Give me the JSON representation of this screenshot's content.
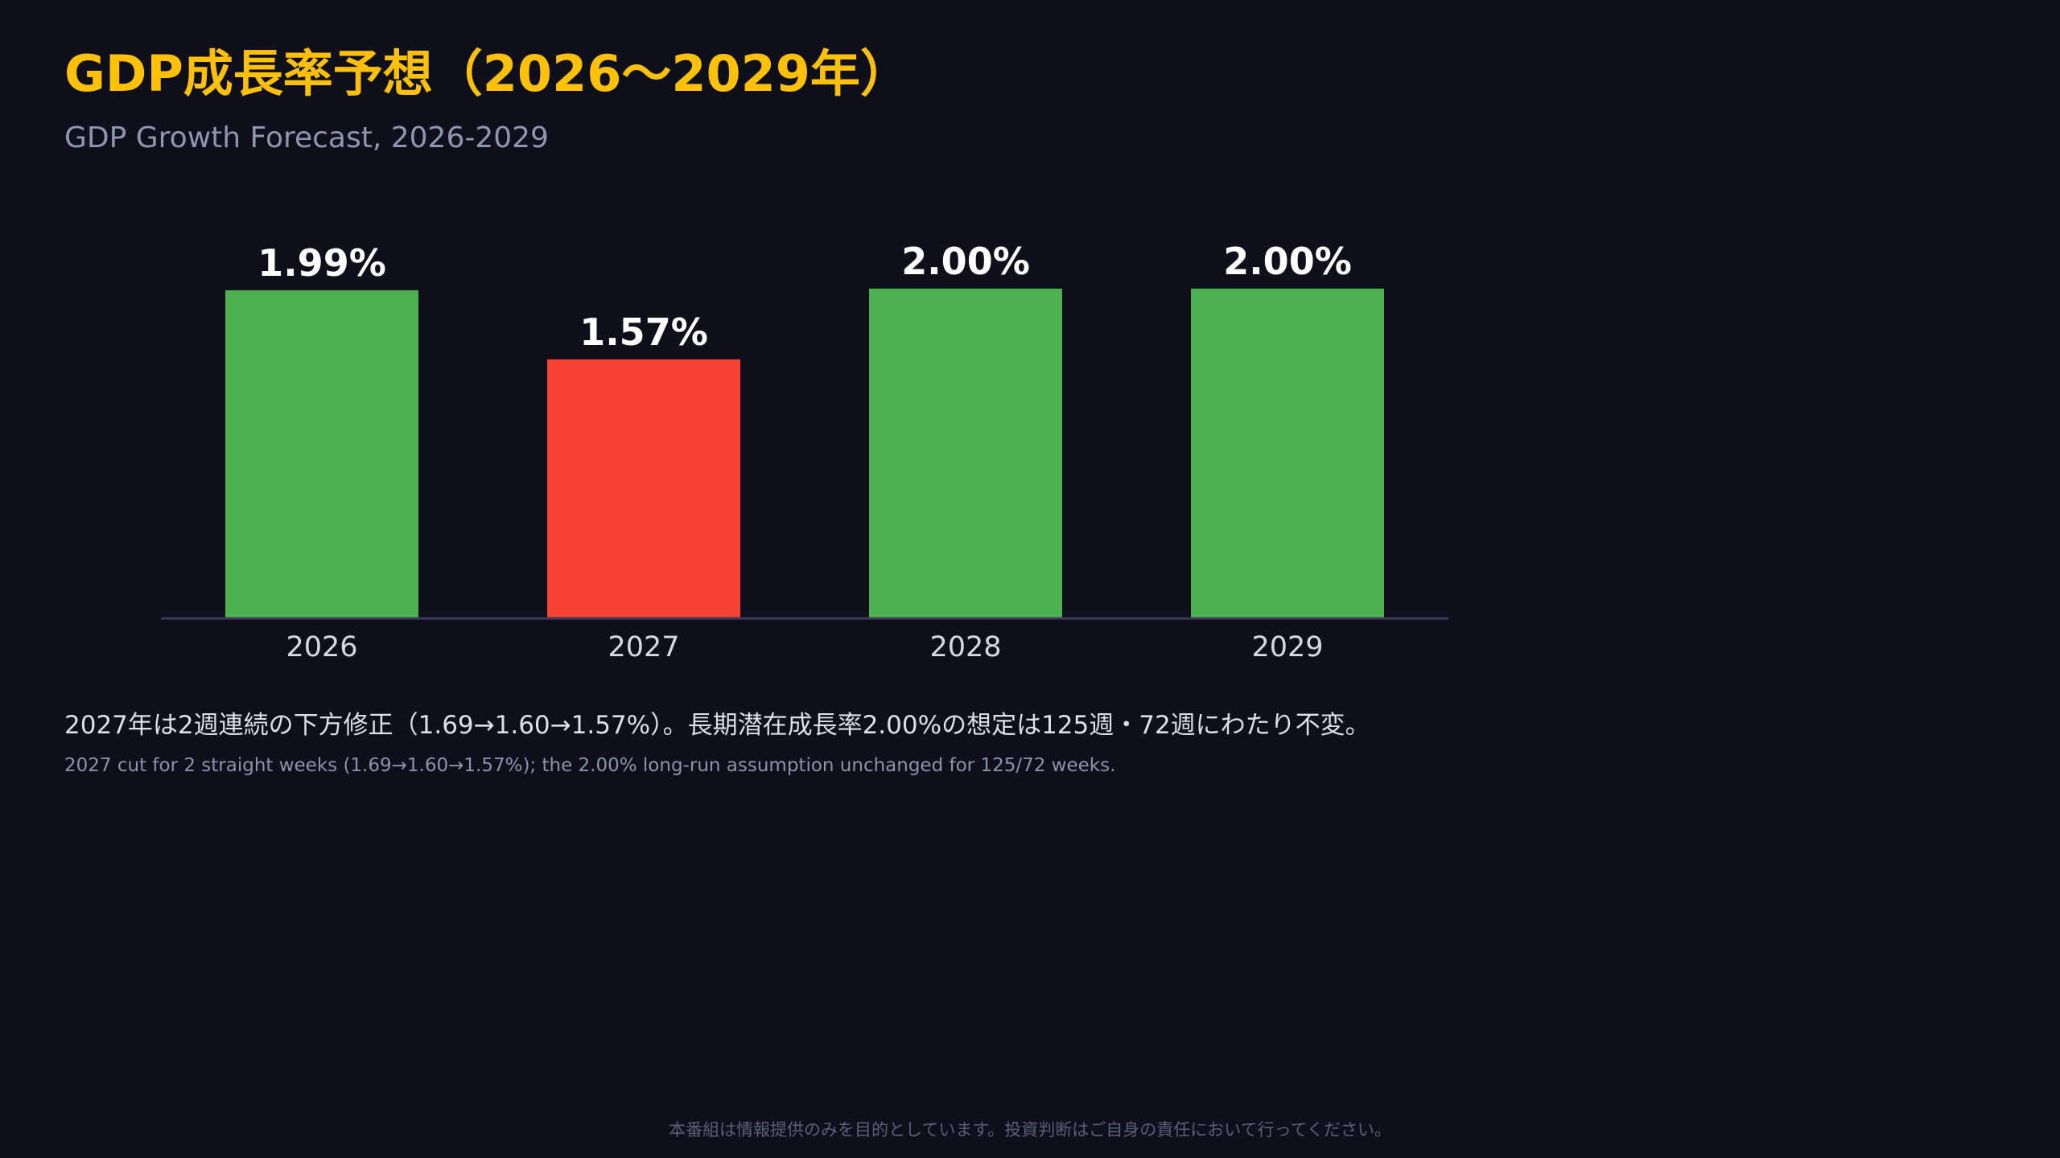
{
  "header": {
    "title": "GDP成長率予想（2026〜2029年）",
    "subtitle": "GDP Growth Forecast, 2026-2029"
  },
  "chart_data": {
    "type": "bar",
    "categories": [
      "2026",
      "2027",
      "2028",
      "2029"
    ],
    "values": [
      1.99,
      1.57,
      2.0,
      2.0
    ],
    "value_labels": [
      "1.99%",
      "1.57%",
      "2.00%",
      "2.00%"
    ],
    "ylim": [
      0,
      2.2
    ],
    "grid": false,
    "bar_colors": [
      "#4caf50",
      "#f44336",
      "#4caf50",
      "#4caf50"
    ],
    "title": "",
    "xlabel": "",
    "ylabel": ""
  },
  "notes": {
    "jp": "2027年は2週連続の下方修正（1.69→1.60→1.57%）。長期潜在成長率2.00%の想定は125週・72週にわたり不変。",
    "en": "2027 cut for 2 straight weeks (1.69→1.60→1.57%); the 2.00% long-run assumption unchanged for 125/72 weeks."
  },
  "footer": {
    "disclaimer": "本番組は情報提供のみを目的としています。投資判断はご自身の責任において行ってください。"
  },
  "colors": {
    "background": "#0f0f1c",
    "title": "#ffc107",
    "subtitle": "#8e96ad",
    "value_label": "#ffffff",
    "tick_label": "#d5d8e2",
    "axis": "#3b3b58",
    "note": "#dcdfe8",
    "note_en": "#8c93a8",
    "disclaimer": "#5a5f78"
  }
}
